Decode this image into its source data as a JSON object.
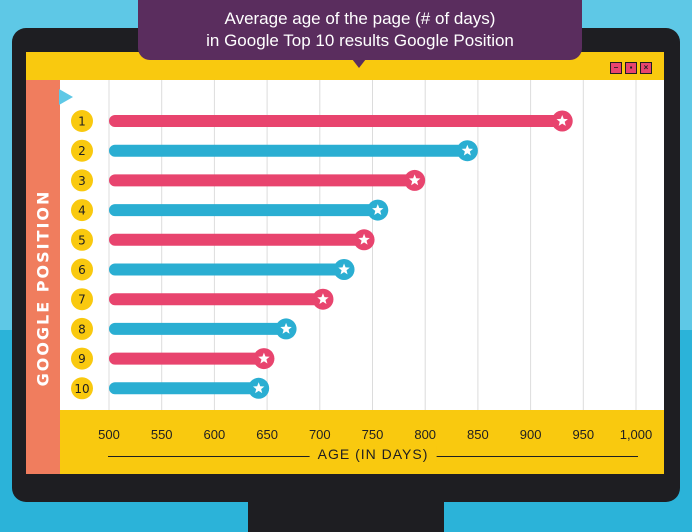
{
  "colors": {
    "pink": "#e8446e",
    "blue": "#2aaed2",
    "yellow": "#f9c90f",
    "purple": "#5a2d5e",
    "coral": "#f07d5e"
  },
  "window": {
    "buttons": [
      "minimize-icon",
      "maximize-icon",
      "close-icon"
    ]
  },
  "chart_data": {
    "type": "bar",
    "orientation": "horizontal",
    "title_line1": "Average age of the page (# of days)",
    "title_line2": "in Google Top 10 results Google Position",
    "xlabel": "AGE (IN DAYS)",
    "ylabel": "GOOGLE POSITION",
    "categories": [
      "1",
      "2",
      "3",
      "4",
      "5",
      "6",
      "7",
      "8",
      "9",
      "10"
    ],
    "values": [
      930,
      840,
      790,
      755,
      742,
      723,
      703,
      668,
      647,
      642
    ],
    "xlim": [
      500,
      1000
    ],
    "xticks": [
      "500",
      "550",
      "600",
      "650",
      "700",
      "750",
      "800",
      "850",
      "900",
      "950",
      "1,000"
    ],
    "grid": "vertical",
    "bar_colors": [
      "pink",
      "blue",
      "pink",
      "blue",
      "pink",
      "blue",
      "pink",
      "blue",
      "pink",
      "blue"
    ],
    "marker": "star-icon"
  }
}
